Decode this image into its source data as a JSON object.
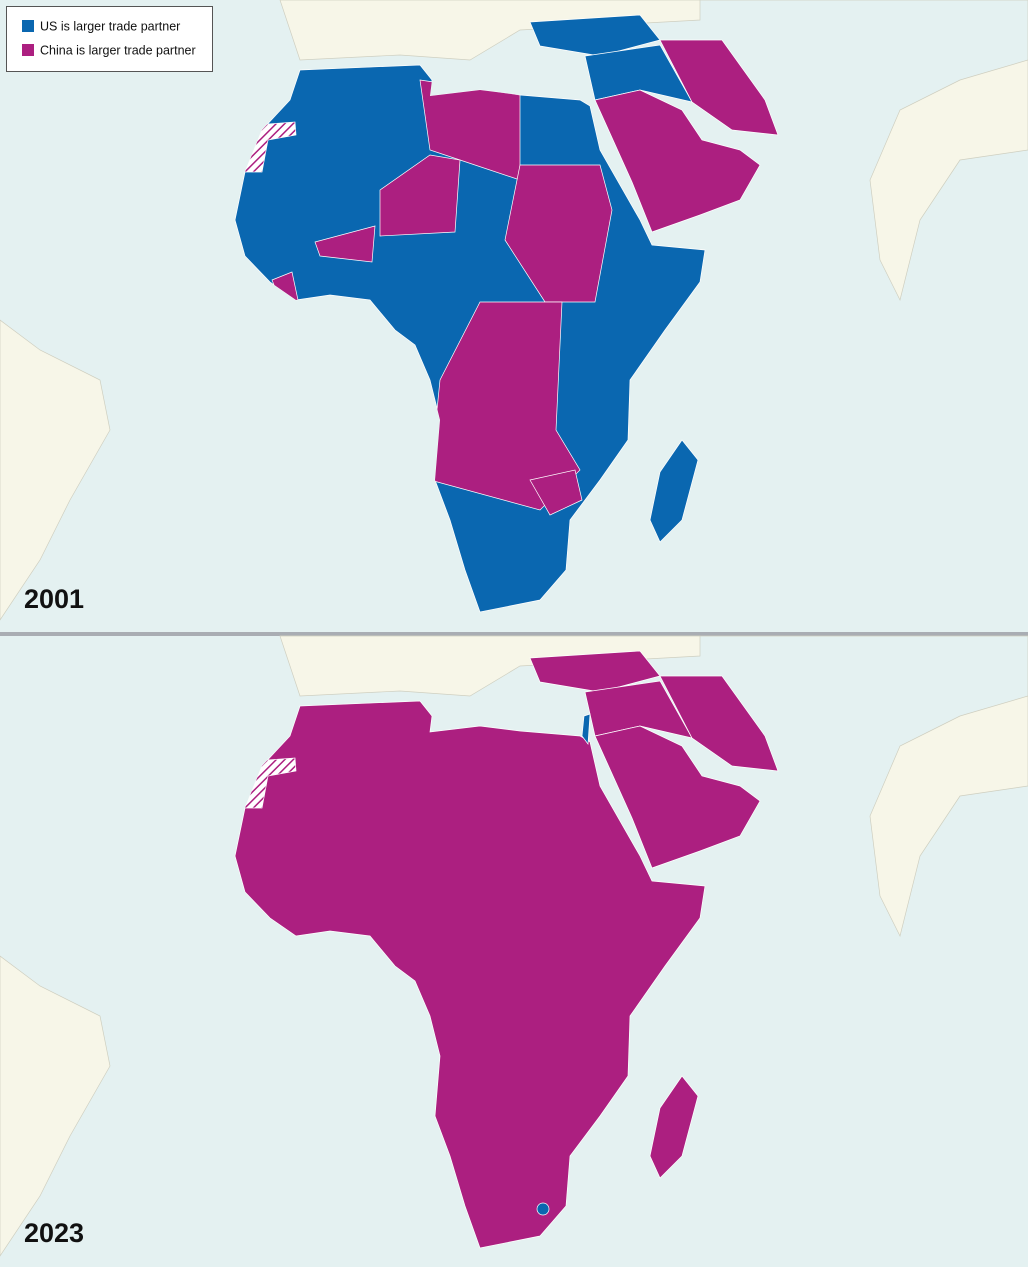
{
  "legend": {
    "items": [
      {
        "label": "US is larger trade partner",
        "color": "#0a67b0"
      },
      {
        "label": "China is larger trade partner",
        "color": "#ac1f80"
      }
    ]
  },
  "panels": [
    {
      "year": "2001"
    },
    {
      "year": "2023"
    }
  ]
}
